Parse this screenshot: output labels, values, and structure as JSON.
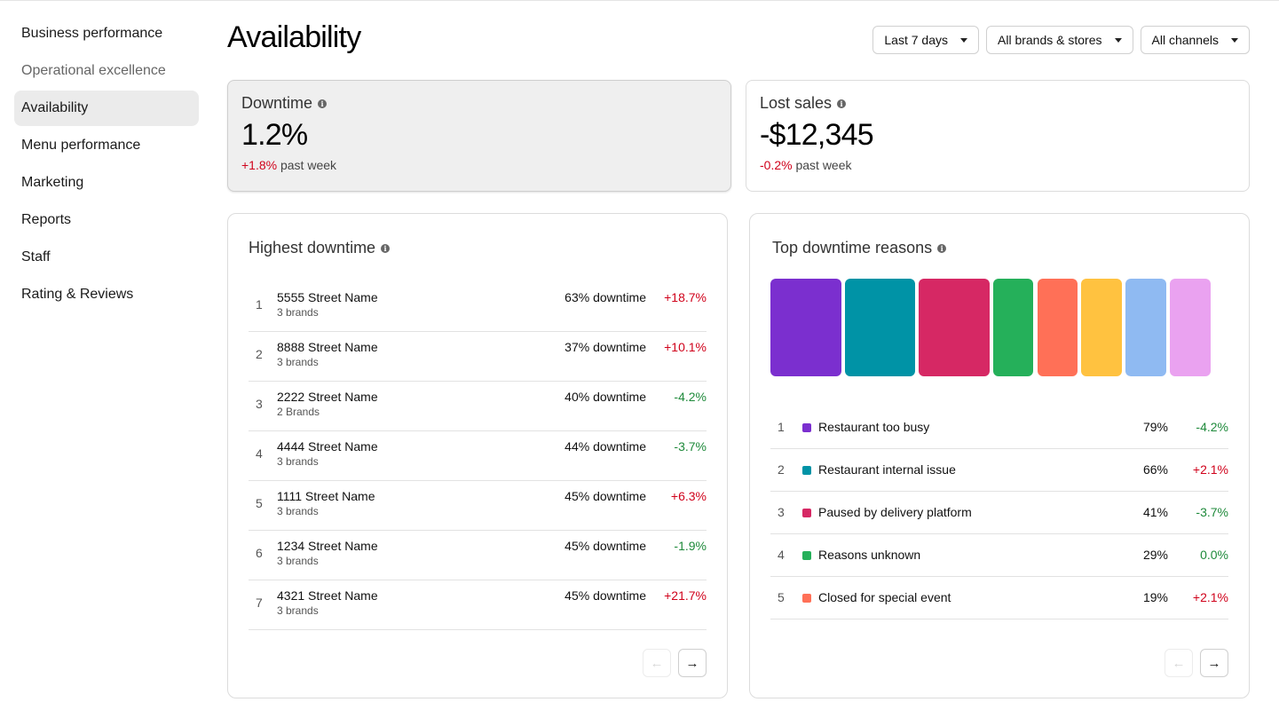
{
  "sidebar": {
    "items": [
      {
        "label": "Business performance",
        "state": "normal"
      },
      {
        "label": "Operational excellence",
        "state": "muted"
      },
      {
        "label": "Availability",
        "state": "active"
      },
      {
        "label": "Menu performance",
        "state": "normal"
      },
      {
        "label": "Marketing",
        "state": "normal"
      },
      {
        "label": "Reports",
        "state": "normal"
      },
      {
        "label": "Staff",
        "state": "normal"
      },
      {
        "label": "Rating & Reviews",
        "state": "normal"
      }
    ]
  },
  "header": {
    "title": "Availability",
    "filters": {
      "date_range": "Last 7 days",
      "brands": "All brands & stores",
      "channels": "All channels"
    }
  },
  "kpis": {
    "downtime": {
      "label": "Downtime",
      "value": "1.2%",
      "change": "+1.8%",
      "period": "past week"
    },
    "lost_sales": {
      "label": "Lost sales",
      "value": "-$12,345",
      "change": "-0.2%",
      "period": "past week"
    }
  },
  "highest_downtime": {
    "title": "Highest downtime",
    "rows": [
      {
        "rank": "1",
        "name": "5555 Street Name",
        "brands": "3 brands",
        "downtime": "63% downtime",
        "change": "+18.7%",
        "trend": "up"
      },
      {
        "rank": "2",
        "name": "8888 Street Name",
        "brands": "3 brands",
        "downtime": "37% downtime",
        "change": "+10.1%",
        "trend": "up"
      },
      {
        "rank": "3",
        "name": "2222 Street Name",
        "brands": "2 Brands",
        "downtime": "40% downtime",
        "change": "-4.2%",
        "trend": "down"
      },
      {
        "rank": "4",
        "name": "4444 Street Name",
        "brands": "3 brands",
        "downtime": "44% downtime",
        "change": "-3.7%",
        "trend": "down"
      },
      {
        "rank": "5",
        "name": "1111 Street Name",
        "brands": "3 brands",
        "downtime": "45% downtime",
        "change": "+6.3%",
        "trend": "up"
      },
      {
        "rank": "6",
        "name": "1234 Street Name",
        "brands": "3 brands",
        "downtime": "45% downtime",
        "change": "-1.9%",
        "trend": "down"
      },
      {
        "rank": "7",
        "name": "4321 Street Name",
        "brands": "3 brands",
        "downtime": "45% downtime",
        "change": "+21.7%",
        "trend": "up"
      }
    ]
  },
  "downtime_reasons": {
    "title": "Top downtime reasons",
    "blocks": [
      {
        "color": "#7b2fcf",
        "share": 0.163
      },
      {
        "color": "#0093a6",
        "share": 0.163
      },
      {
        "color": "#d62864",
        "share": 0.163
      },
      {
        "color": "#25b05a",
        "share": 0.094
      },
      {
        "color": "#ff7057",
        "share": 0.094
      },
      {
        "color": "#ffc240",
        "share": 0.094
      },
      {
        "color": "#8fbaf2",
        "share": 0.094
      },
      {
        "color": "#eaa2f0",
        "share": 0.094
      }
    ],
    "rows": [
      {
        "rank": "1",
        "label": "Restaurant too busy",
        "color": "#7b2fcf",
        "pct": "79%",
        "change": "-4.2%",
        "trend": "down"
      },
      {
        "rank": "2",
        "label": "Restaurant internal issue",
        "color": "#0093a6",
        "pct": "66%",
        "change": "+2.1%",
        "trend": "up"
      },
      {
        "rank": "3",
        "label": "Paused by delivery platform",
        "color": "#d62864",
        "pct": "41%",
        "change": "-3.7%",
        "trend": "down"
      },
      {
        "rank": "4",
        "label": "Reasons unknown",
        "color": "#25b05a",
        "pct": "29%",
        "change": "0.0%",
        "trend": "down"
      },
      {
        "rank": "5",
        "label": "Closed for special event",
        "color": "#ff7057",
        "pct": "19%",
        "change": "+2.1%",
        "trend": "up"
      }
    ]
  },
  "pager": {
    "prev_icon": "arrow-left-icon",
    "next_icon": "arrow-right-icon"
  }
}
